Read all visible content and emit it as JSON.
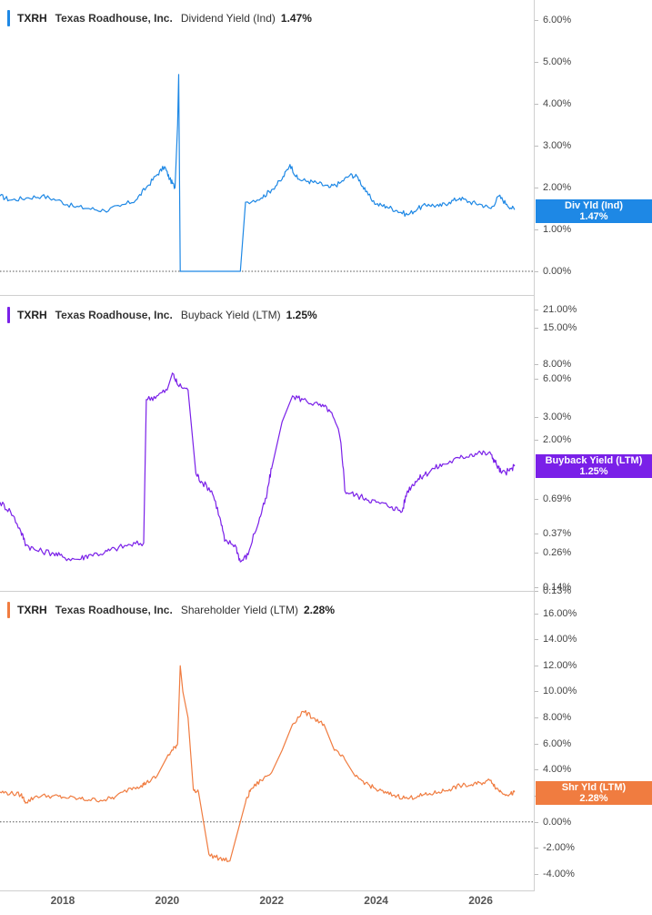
{
  "colors": {
    "div": "#1e88e5",
    "buyback": "#7a20e8",
    "shareholder": "#f07c40"
  },
  "chart_data": [
    {
      "type": "line",
      "header": {
        "ticker": "TXRH",
        "name": "Texas Roadhouse, Inc.",
        "metric": "Dividend Yield (Ind)",
        "value": "1.47%"
      },
      "badge": {
        "label": "Div Yld (Ind)",
        "value": "1.47%"
      },
      "y_ticks": [
        "6.00%",
        "5.00%",
        "4.00%",
        "3.00%",
        "2.00%",
        "1.00%",
        "0.00%"
      ],
      "ylim": [
        0,
        6.5
      ],
      "x": [
        2016.8,
        2017.0,
        2017.3,
        2017.6,
        2017.9,
        2018.2,
        2018.5,
        2018.8,
        2019.1,
        2019.4,
        2019.6,
        2019.8,
        2019.95,
        2020.05,
        2020.15,
        2020.2,
        2020.22,
        2020.25,
        2021.4,
        2021.5,
        2021.8,
        2022.0,
        2022.2,
        2022.35,
        2022.5,
        2022.7,
        2022.9,
        2023.1,
        2023.3,
        2023.5,
        2023.65,
        2023.8,
        2024.0,
        2024.2,
        2024.4,
        2024.6,
        2024.8,
        2025.0,
        2025.2,
        2025.4,
        2025.6,
        2025.8,
        2026.0,
        2026.2,
        2026.35,
        2026.5,
        2026.65
      ],
      "values": [
        1.8,
        1.7,
        1.75,
        1.8,
        1.7,
        1.55,
        1.5,
        1.45,
        1.55,
        1.7,
        2.0,
        2.3,
        2.5,
        2.2,
        2.0,
        3.5,
        4.7,
        0.0,
        0.0,
        1.65,
        1.75,
        1.95,
        2.2,
        2.55,
        2.2,
        2.15,
        2.1,
        2.0,
        2.1,
        2.3,
        2.25,
        1.9,
        1.6,
        1.55,
        1.45,
        1.35,
        1.5,
        1.6,
        1.55,
        1.65,
        1.75,
        1.65,
        1.6,
        1.5,
        1.8,
        1.6,
        1.47
      ]
    },
    {
      "type": "line",
      "header": {
        "ticker": "TXRH",
        "name": "Texas Roadhouse, Inc.",
        "metric": "Buyback Yield (LTM)",
        "value": "1.25%"
      },
      "badge": {
        "label": "Buyback Yield (LTM)",
        "value": "1.25%"
      },
      "y_ticks": [
        "21.00%",
        "15.00%",
        "8.00%",
        "6.00%",
        "3.00%",
        "2.00%",
        "0.69%",
        "0.37%",
        "0.26%",
        "0.14%",
        "0.13%"
      ],
      "scale": "log",
      "x": [
        2016.8,
        2017.0,
        2017.2,
        2017.3,
        2017.5,
        2017.8,
        2018.0,
        2018.3,
        2018.5,
        2018.8,
        2019.0,
        2019.3,
        2019.55,
        2019.6,
        2019.8,
        2020.0,
        2020.1,
        2020.2,
        2020.4,
        2020.55,
        2020.65,
        2020.85,
        2021.0,
        2021.1,
        2021.3,
        2021.4,
        2021.55,
        2021.75,
        2021.9,
        2022.0,
        2022.2,
        2022.4,
        2022.6,
        2022.9,
        2023.1,
        2023.3,
        2023.4,
        2023.6,
        2023.8,
        2024.0,
        2024.3,
        2024.5,
        2024.6,
        2024.75,
        2024.9,
        2025.1,
        2025.3,
        2025.6,
        2025.8,
        2026.0,
        2026.2,
        2026.3,
        2026.4,
        2026.55,
        2026.65
      ],
      "values": [
        0.65,
        0.55,
        0.38,
        0.3,
        0.27,
        0.26,
        0.24,
        0.23,
        0.25,
        0.26,
        0.28,
        0.3,
        0.31,
        4.2,
        4.5,
        5.0,
        6.8,
        5.5,
        5.0,
        1.1,
        0.95,
        0.8,
        0.5,
        0.32,
        0.3,
        0.22,
        0.25,
        0.45,
        0.7,
        1.2,
        2.8,
        4.5,
        4.2,
        3.8,
        3.5,
        2.2,
        0.8,
        0.74,
        0.7,
        0.65,
        0.6,
        0.55,
        0.8,
        0.95,
        1.05,
        1.2,
        1.3,
        1.45,
        1.55,
        1.6,
        1.55,
        1.3,
        1.1,
        1.15,
        1.25
      ]
    },
    {
      "type": "line",
      "header": {
        "ticker": "TXRH",
        "name": "Texas Roadhouse, Inc.",
        "metric": "Shareholder Yield (LTM)",
        "value": "2.28%"
      },
      "badge": {
        "label": "Shr Yld (LTM)",
        "value": "2.28%"
      },
      "y_ticks": [
        "16.00%",
        "14.00%",
        "12.00%",
        "10.00%",
        "8.00%",
        "6.00%",
        "4.00%",
        "2.00%",
        "0.00%",
        "-2.00%",
        "-4.00%"
      ],
      "ylim": [
        -4.8,
        17.5
      ],
      "x": [
        2016.8,
        2017.0,
        2017.2,
        2017.3,
        2017.5,
        2017.8,
        2018.0,
        2018.3,
        2018.5,
        2018.8,
        2019.0,
        2019.3,
        2019.5,
        2019.6,
        2019.8,
        2020.0,
        2020.1,
        2020.2,
        2020.25,
        2020.3,
        2020.4,
        2020.5,
        2020.6,
        2020.8,
        2021.0,
        2021.2,
        2021.3,
        2021.5,
        2021.6,
        2021.8,
        2022.0,
        2022.2,
        2022.4,
        2022.6,
        2022.8,
        2023.0,
        2023.2,
        2023.4,
        2023.6,
        2023.8,
        2024.0,
        2024.2,
        2024.4,
        2024.6,
        2024.8,
        2025.0,
        2025.2,
        2025.4,
        2025.6,
        2025.8,
        2026.0,
        2026.2,
        2026.3,
        2026.4,
        2026.55,
        2026.65
      ],
      "values": [
        2.3,
        2.2,
        2.1,
        1.5,
        2.0,
        2.0,
        1.9,
        1.8,
        1.7,
        1.7,
        1.9,
        2.6,
        2.8,
        3.0,
        3.5,
        5.0,
        5.5,
        6.0,
        12.0,
        10.0,
        8.0,
        2.5,
        2.3,
        -2.5,
        -2.8,
        -3.0,
        -1.5,
        1.5,
        2.5,
        3.2,
        3.8,
        5.5,
        7.5,
        8.5,
        8.0,
        7.5,
        5.5,
        4.8,
        3.5,
        3.0,
        2.5,
        2.2,
        2.0,
        1.8,
        2.0,
        2.1,
        2.3,
        2.5,
        2.8,
        2.8,
        3.0,
        3.2,
        2.6,
        2.3,
        2.1,
        2.28
      ]
    }
  ],
  "x_axis": {
    "labels": [
      "2018",
      "2020",
      "2022",
      "2024",
      "2026"
    ],
    "values": [
      2018,
      2020,
      2022,
      2024,
      2026
    ],
    "xlim": [
      2016.8,
      2027.0
    ]
  }
}
